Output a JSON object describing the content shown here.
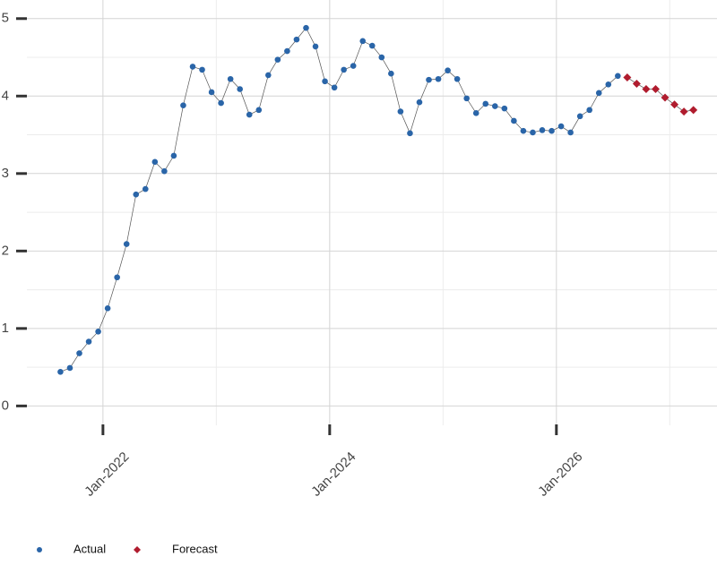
{
  "chart_data": {
    "type": "line",
    "x": [
      "2021-08",
      "2021-09",
      "2021-10",
      "2021-11",
      "2021-12",
      "2022-01",
      "2022-02",
      "2022-03",
      "2022-04",
      "2022-05",
      "2022-06",
      "2022-07",
      "2022-08",
      "2022-09",
      "2022-10",
      "2022-11",
      "2022-12",
      "2023-01",
      "2023-02",
      "2023-03",
      "2023-04",
      "2023-05",
      "2023-06",
      "2023-07",
      "2023-08",
      "2023-09",
      "2023-10",
      "2023-11",
      "2023-12",
      "2024-01",
      "2024-02",
      "2024-03",
      "2024-04",
      "2024-05",
      "2024-06",
      "2024-07",
      "2024-08",
      "2024-09",
      "2024-10",
      "2024-11",
      "2024-12",
      "2025-01",
      "2025-02",
      "2025-03",
      "2025-04",
      "2025-05",
      "2025-06",
      "2025-07",
      "2025-08",
      "2025-09",
      "2025-10",
      "2025-11",
      "2025-12",
      "2026-01",
      "2026-02",
      "2026-03",
      "2026-04",
      "2026-05",
      "2026-06",
      "2026-07",
      "2026-08",
      "2026-09",
      "2026-10",
      "2026-11",
      "2026-12",
      "2027-01",
      "2027-02",
      "2027-03"
    ],
    "series": [
      {
        "name": "Actual",
        "color": "#2a65a8",
        "marker": "circle",
        "values": [
          0.44,
          0.49,
          0.68,
          0.83,
          0.96,
          1.26,
          1.66,
          2.09,
          2.73,
          2.8,
          3.15,
          3.03,
          3.23,
          3.88,
          4.38,
          4.34,
          4.05,
          3.91,
          4.22,
          4.09,
          3.76,
          3.82,
          4.27,
          4.47,
          4.58,
          4.73,
          4.88,
          4.64,
          4.19,
          4.11,
          4.34,
          4.39,
          4.71,
          4.65,
          4.5,
          4.29,
          3.8,
          3.52,
          3.92,
          4.21,
          4.22,
          4.33,
          4.22,
          3.97,
          3.78,
          3.9,
          3.87,
          3.84,
          3.68,
          3.55,
          3.53,
          3.56,
          3.55,
          3.61,
          3.53,
          3.74,
          3.82,
          4.04,
          4.15,
          4.26,
          null,
          null,
          null,
          null,
          null,
          null,
          null,
          null
        ]
      },
      {
        "name": "Forecast",
        "color": "#b01c2e",
        "marker": "diamond",
        "values": [
          null,
          null,
          null,
          null,
          null,
          null,
          null,
          null,
          null,
          null,
          null,
          null,
          null,
          null,
          null,
          null,
          null,
          null,
          null,
          null,
          null,
          null,
          null,
          null,
          null,
          null,
          null,
          null,
          null,
          null,
          null,
          null,
          null,
          null,
          null,
          null,
          null,
          null,
          null,
          null,
          null,
          null,
          null,
          null,
          null,
          null,
          null,
          null,
          null,
          null,
          null,
          null,
          null,
          null,
          null,
          null,
          null,
          null,
          null,
          null,
          4.24,
          4.16,
          4.09,
          4.09,
          3.98,
          3.89,
          3.8,
          3.82
        ]
      }
    ],
    "xlim": [
      "2021-04",
      "2027-06"
    ],
    "xticks": [
      {
        "value": "2022-01",
        "label": "Jan-2022"
      },
      {
        "value": "2024-01",
        "label": "Jan-2024"
      },
      {
        "value": "2026-01",
        "label": "Jan-2026"
      }
    ],
    "xminor": [
      "2023-01",
      "2025-01",
      "2027-01"
    ],
    "ylim": [
      -0.25,
      5.24
    ],
    "yticks": [
      0,
      1,
      2,
      3,
      4,
      5
    ],
    "yminor": [
      0.5,
      1.5,
      2.5,
      3.5,
      4.5
    ],
    "grid": true,
    "legend": "bottom-left"
  }
}
